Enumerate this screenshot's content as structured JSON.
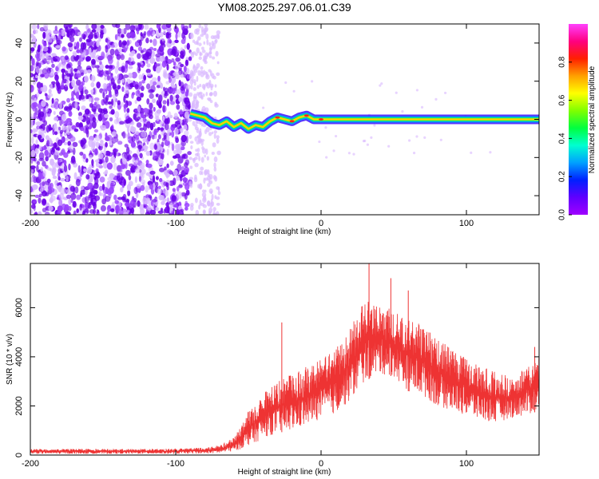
{
  "title": "YM08.2025.297.06.01.C39",
  "colors": {
    "snr_line": "#ee3333",
    "ridge_core": "#ff2020",
    "scatter_light": "#d8b8ff",
    "scatter_dark": "#6a00e8",
    "colorbar_stops": [
      "#a000ff",
      "#6000ff",
      "#0020ff",
      "#00a0ff",
      "#00ffd0",
      "#00ff40",
      "#80ff00",
      "#ffff00",
      "#ffa000",
      "#ff2000",
      "#ff0080",
      "#ff40ff"
    ]
  },
  "chart_data": [
    {
      "type": "heatmap",
      "name": "spectrogram",
      "xlabel": "Height of straight line (km)",
      "ylabel": "Frequency (Hz)",
      "xlim": [
        -200,
        150
      ],
      "ylim": [
        -50,
        50
      ],
      "x_ticks": [
        -200,
        -100,
        0,
        100
      ],
      "y_ticks": [
        -40,
        -20,
        0,
        20,
        40
      ],
      "colorbar": {
        "label": "Normalized spectral amplitude",
        "range": [
          0,
          1
        ],
        "ticks": [
          "0.0",
          "0.2",
          "0.4",
          "0.6",
          "0.8"
        ]
      },
      "features": {
        "dense_noise_x_range": [
          -200,
          -90
        ],
        "sparse_noise_x_range": [
          -90,
          -70
        ],
        "line_start_x": -90,
        "ridge": {
          "x": [
            -90,
            -85,
            -80,
            -75,
            -70,
            -65,
            -60,
            -55,
            -50,
            -45,
            -40,
            -35,
            -30,
            -25,
            -20,
            -15,
            -10,
            -5,
            0,
            150
          ],
          "y": [
            3,
            2,
            1,
            -2,
            -3,
            -1,
            -4,
            -2,
            -5,
            -3,
            -4,
            -1,
            1,
            0,
            -1,
            1,
            2,
            0,
            0,
            0
          ],
          "peak_amplitude": 0.9
        }
      }
    },
    {
      "type": "line",
      "name": "snr",
      "xlabel": "Height of straight line (km)",
      "ylabel": "SNR (10 * v/v)",
      "xlim": [
        -200,
        150
      ],
      "ylim": [
        0,
        7800
      ],
      "x_ticks": [
        -200,
        -100,
        0,
        100
      ],
      "y_ticks": [
        0,
        2000,
        4000,
        6000
      ],
      "series": [
        {
          "x": [
            -200,
            -180,
            -160,
            -140,
            -120,
            -100,
            -90,
            -80,
            -70,
            -60,
            -55,
            -50,
            -45,
            -40,
            -30,
            -20,
            -10,
            0,
            10,
            20,
            30,
            40,
            50,
            60,
            70,
            80,
            90,
            100,
            110,
            120,
            130,
            140,
            150
          ],
          "y_min": [
            50,
            50,
            50,
            50,
            50,
            50,
            60,
            60,
            80,
            150,
            250,
            400,
            500,
            700,
            900,
            1000,
            1200,
            1500,
            1700,
            2200,
            3000,
            3300,
            3200,
            2600,
            2400,
            2000,
            1800,
            1600,
            1400,
            1300,
            1500,
            1600,
            1800
          ],
          "y_max": [
            250,
            250,
            250,
            250,
            250,
            270,
            280,
            300,
            400,
            700,
            1200,
            1800,
            2100,
            2500,
            3000,
            3300,
            3600,
            3900,
            4300,
            5200,
            6300,
            6200,
            5900,
            5600,
            5400,
            4800,
            4300,
            4000,
            3600,
            3400,
            3200,
            3600,
            4000
          ],
          "spikes": [
            {
              "x": -27,
              "y": 5400
            },
            {
              "x": 33,
              "y": 7800
            },
            {
              "x": 48,
              "y": 7200
            },
            {
              "x": 60,
              "y": 6700
            },
            {
              "x": 147,
              "y": 4400
            }
          ]
        }
      ]
    }
  ]
}
